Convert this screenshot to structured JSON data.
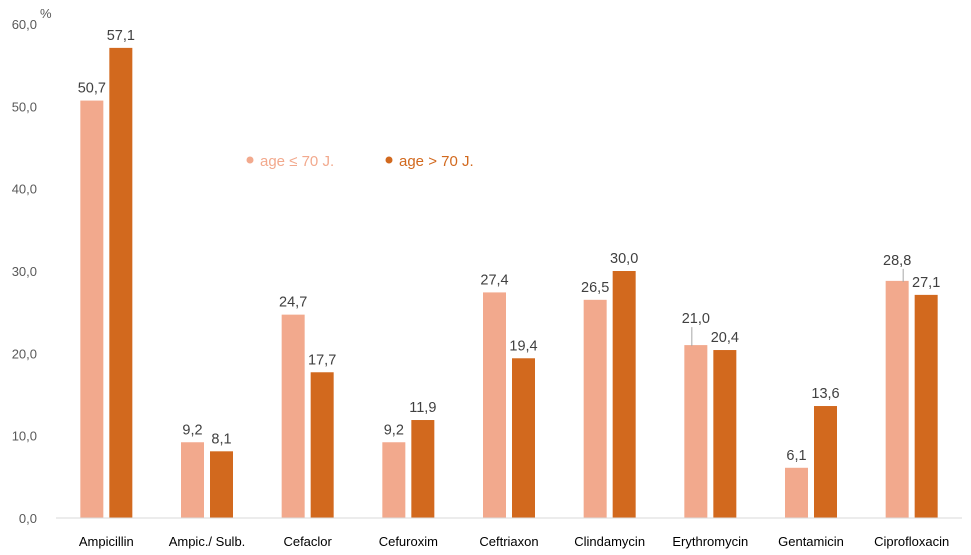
{
  "chart_data": {
    "type": "bar",
    "ylabel": "%",
    "ylim": [
      0,
      60
    ],
    "ytick_step": 10,
    "y_ticks": [
      "0,0",
      "10,0",
      "20,0",
      "30,0",
      "40,0",
      "50,0",
      "60,0"
    ],
    "grid": false,
    "legend_position": "center-left",
    "categories": [
      "Ampicillin",
      "Ampic./ Sulb.",
      "Cefaclor",
      "Cefuroxim",
      "Ceftriaxon",
      "Clindamycin",
      "Erythromycin",
      "Gentamicin",
      "Ciprofloxacin"
    ],
    "series": [
      {
        "name": "age ≤ 70 J.",
        "color": "#F2A98D",
        "values": [
          50.7,
          9.2,
          24.7,
          9.2,
          27.4,
          26.5,
          21.0,
          6.1,
          28.8
        ],
        "labels": [
          "50,7",
          "9,2",
          "24,7",
          "9,2",
          "27,4",
          "26,5",
          "21,0",
          "6,1",
          "28,8"
        ]
      },
      {
        "name": "age > 70 J.",
        "color": "#D2691E",
        "values": [
          57.1,
          8.1,
          17.7,
          11.9,
          19.4,
          30.0,
          20.4,
          13.6,
          27.1
        ],
        "labels": [
          "57,1",
          "8,1",
          "17,7",
          "11,9",
          "19,4",
          "30,0",
          "20,4",
          "13,6",
          "27,1"
        ]
      }
    ]
  }
}
